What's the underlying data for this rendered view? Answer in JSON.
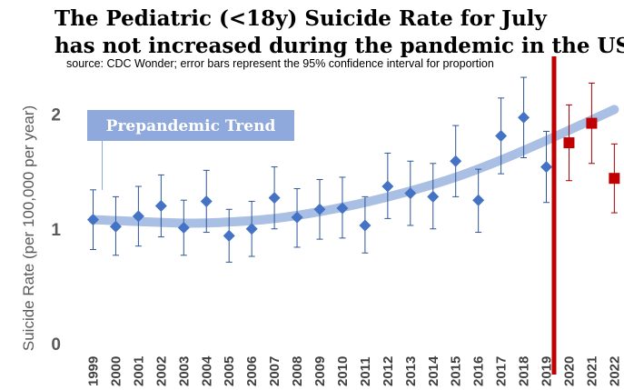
{
  "chart_data": {
    "type": "scatter",
    "title_line1": "The Pediatric (<18y) Suicide Rate for July",
    "title_line2": "has not increased during the pandemic in the US",
    "subtitle": "source: CDC Wonder; error bars represent the 95% confidence interval for proportion",
    "ylabel": "Suicide Rate (per 100,000 per year)",
    "xlabel": "",
    "ylim": [
      0,
      2.3
    ],
    "yticks": [
      "0",
      "1",
      "2"
    ],
    "years": [
      "1999",
      "2000",
      "2001",
      "2002",
      "2003",
      "2004",
      "2005",
      "2006",
      "2007",
      "2008",
      "2009",
      "2010",
      "2011",
      "2012",
      "2013",
      "2014",
      "2015",
      "2016",
      "2017",
      "2018",
      "2019",
      "2020",
      "2021",
      "2022"
    ],
    "series": [
      {
        "name": "Prepandemic",
        "color": "#4472c4",
        "marker": "diamond",
        "x": [
          "1999",
          "2000",
          "2001",
          "2002",
          "2003",
          "2004",
          "2005",
          "2006",
          "2007",
          "2008",
          "2009",
          "2010",
          "2011",
          "2012",
          "2013",
          "2014",
          "2015",
          "2016",
          "2017",
          "2018",
          "2019"
        ],
        "values": [
          1.08,
          1.02,
          1.11,
          1.2,
          1.01,
          1.24,
          0.94,
          1.0,
          1.27,
          1.1,
          1.17,
          1.18,
          1.03,
          1.37,
          1.31,
          1.28,
          1.59,
          1.25,
          1.81,
          1.97,
          1.54
        ],
        "ci_low": [
          0.82,
          0.77,
          0.85,
          0.93,
          0.77,
          0.97,
          0.71,
          0.76,
          1.0,
          0.84,
          0.91,
          0.92,
          0.79,
          1.09,
          1.03,
          1.0,
          1.28,
          0.97,
          1.48,
          1.62,
          1.23
        ],
        "ci_high": [
          1.34,
          1.28,
          1.37,
          1.47,
          1.25,
          1.51,
          1.17,
          1.24,
          1.54,
          1.35,
          1.43,
          1.45,
          1.28,
          1.66,
          1.59,
          1.57,
          1.9,
          1.52,
          2.14,
          2.32,
          1.85
        ]
      },
      {
        "name": "Pandemic",
        "color": "#c00000",
        "marker": "square",
        "x": [
          "2020",
          "2021",
          "2022"
        ],
        "values": [
          1.75,
          1.92,
          1.44
        ],
        "ci_low": [
          1.42,
          1.57,
          1.14
        ],
        "ci_high": [
          2.08,
          2.27,
          1.74
        ]
      }
    ],
    "trend": {
      "label": "Prepandemic Trend",
      "color": "#a0b8e0",
      "x": [
        "1999",
        "2003",
        "2005",
        "2007",
        "2009",
        "2011",
        "2013",
        "2015",
        "2017",
        "2019",
        "2022"
      ],
      "values": [
        1.08,
        1.05,
        1.06,
        1.09,
        1.15,
        1.23,
        1.33,
        1.45,
        1.6,
        1.77,
        2.04
      ]
    },
    "divider": {
      "between": [
        "2019",
        "2020"
      ],
      "color": "#c00000"
    }
  }
}
